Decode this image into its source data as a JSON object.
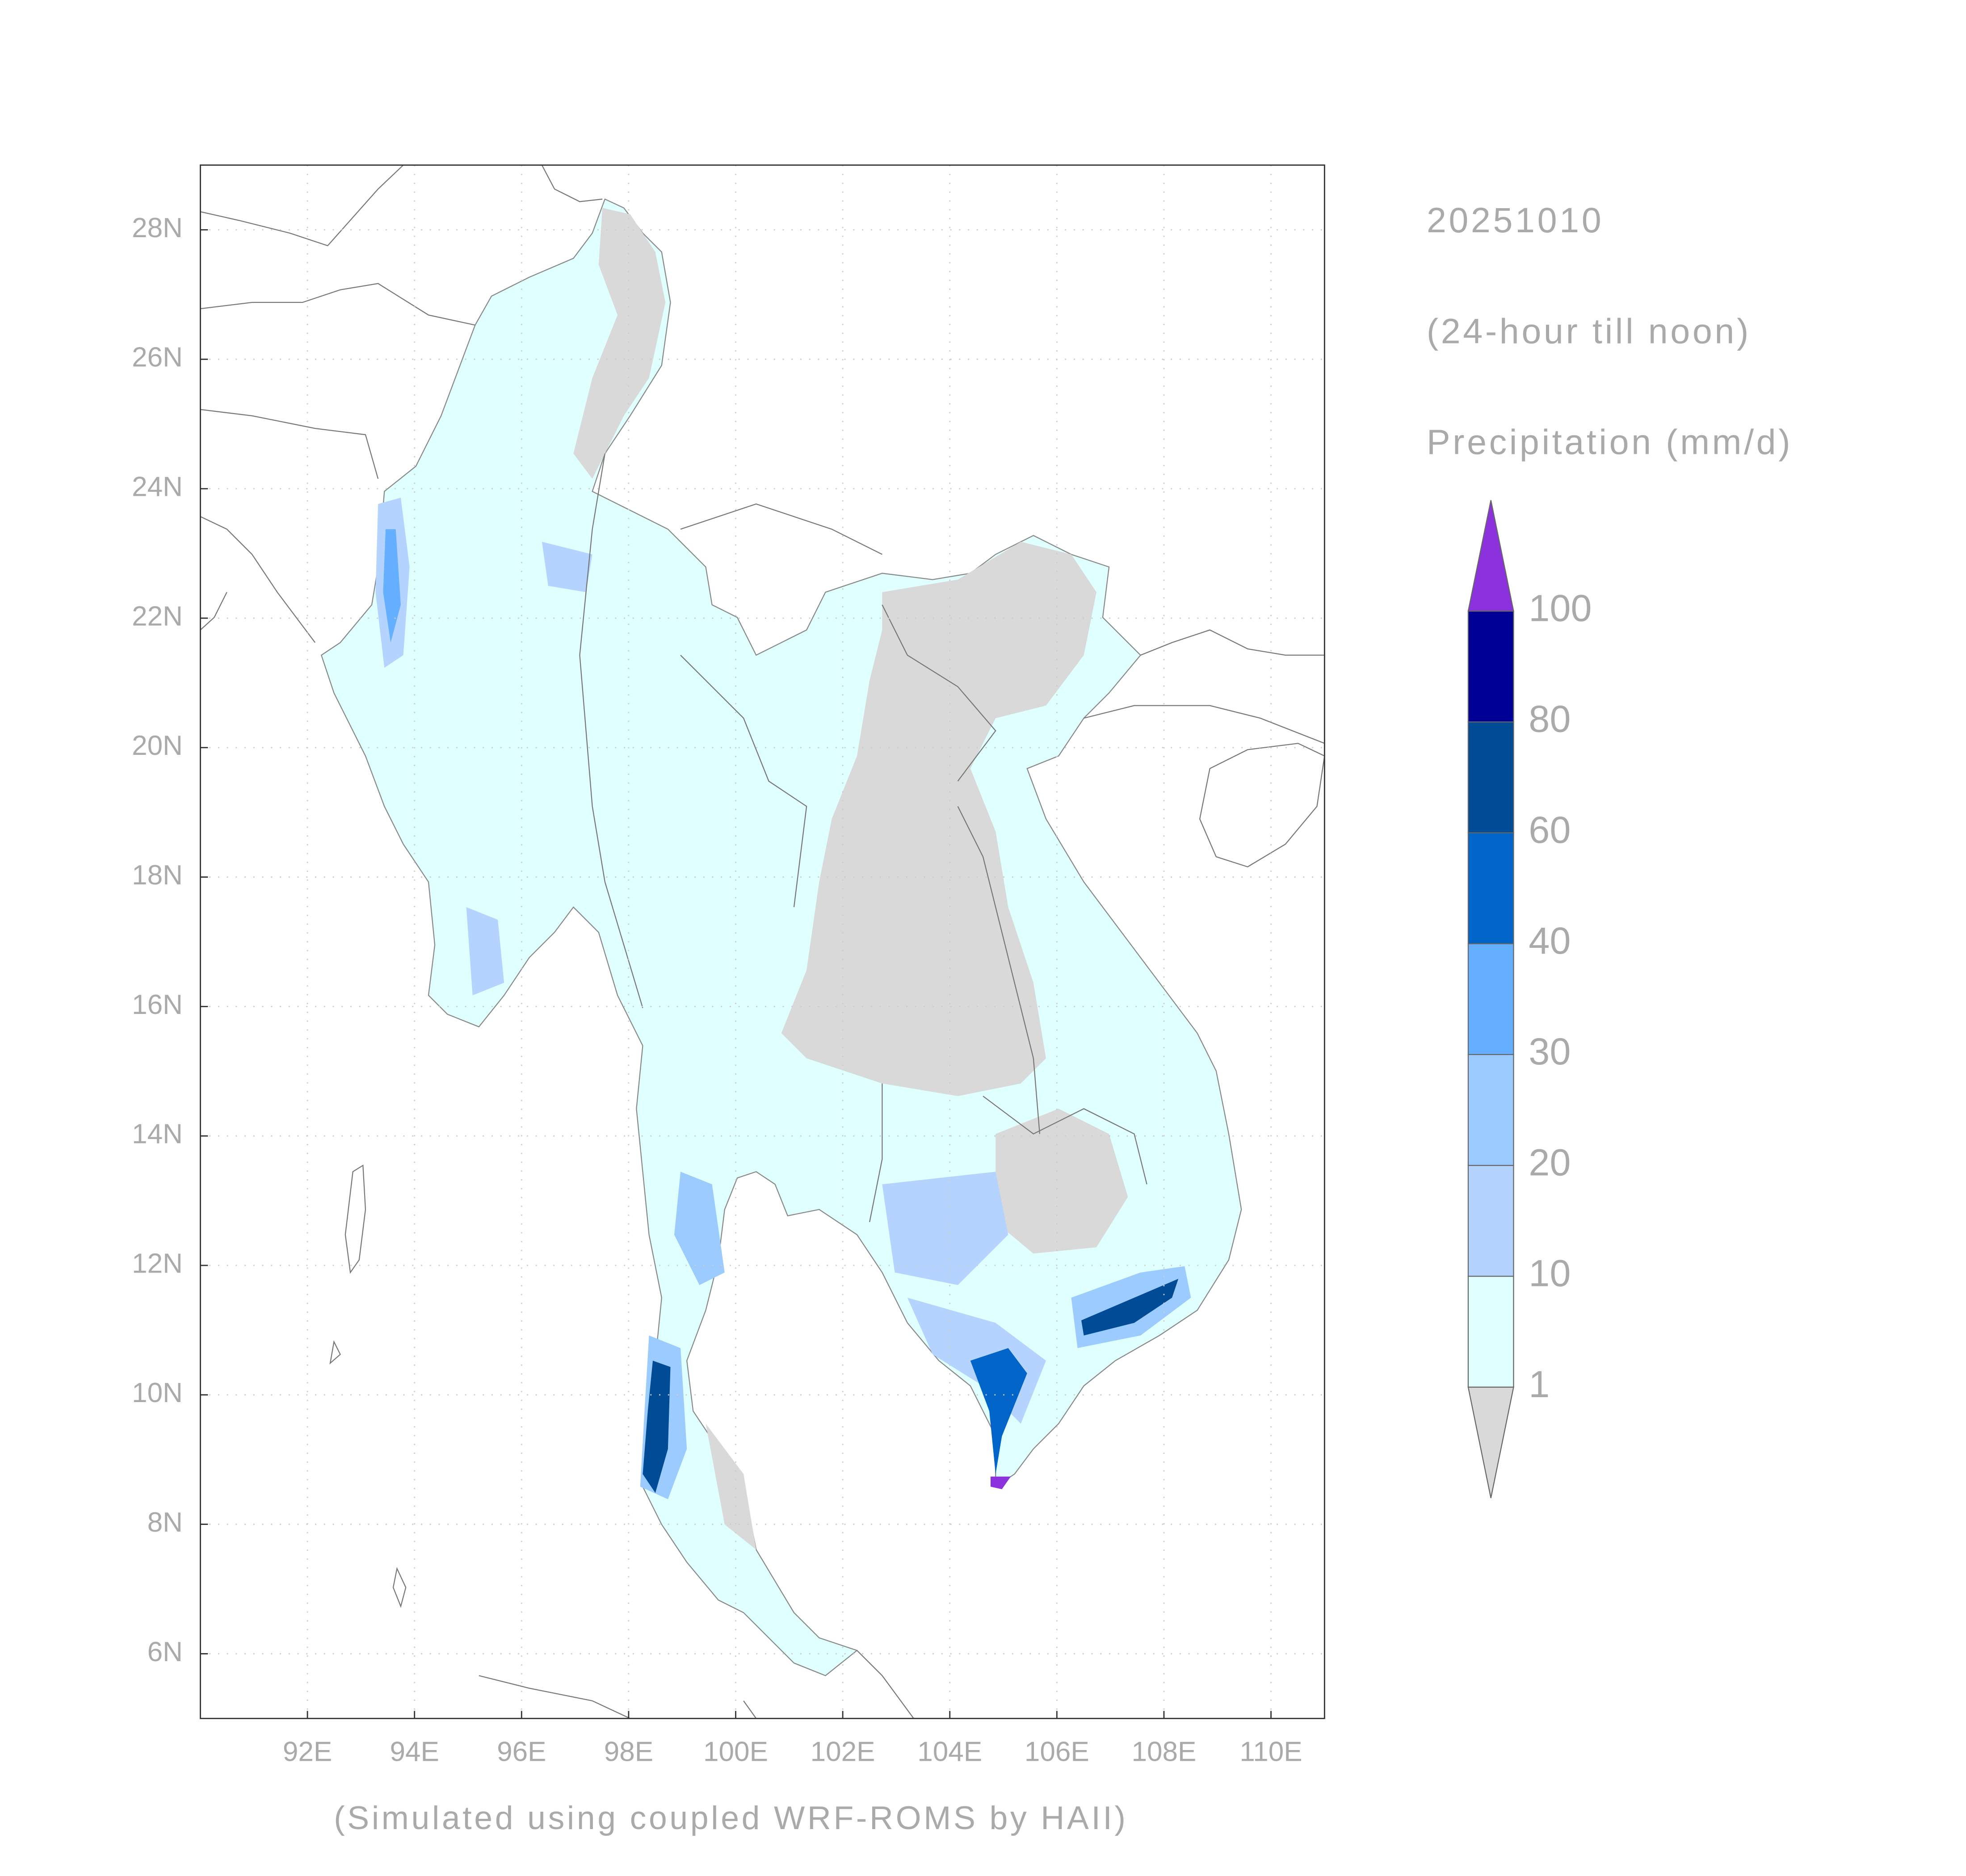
{
  "map": {
    "date": "20251010",
    "period": "(24-hour till noon)",
    "variable": "Precipitation (mm/d)",
    "credit": "(Simulated using coupled WRF-ROMS by HAII)",
    "lon_range": [
      90,
      111
    ],
    "lat_range": [
      5,
      29
    ],
    "lon_ticks": [
      {
        "value": 92,
        "label": "92E"
      },
      {
        "value": 94,
        "label": "94E"
      },
      {
        "value": 96,
        "label": "96E"
      },
      {
        "value": 98,
        "label": "98E"
      },
      {
        "value": 100,
        "label": "100E"
      },
      {
        "value": 102,
        "label": "102E"
      },
      {
        "value": 104,
        "label": "104E"
      },
      {
        "value": 106,
        "label": "106E"
      },
      {
        "value": 108,
        "label": "108E"
      },
      {
        "value": 110,
        "label": "110E"
      }
    ],
    "lat_ticks": [
      {
        "value": 6,
        "label": "6N"
      },
      {
        "value": 8,
        "label": "8N"
      },
      {
        "value": 10,
        "label": "10N"
      },
      {
        "value": 12,
        "label": "12N"
      },
      {
        "value": 14,
        "label": "14N"
      },
      {
        "value": 16,
        "label": "16N"
      },
      {
        "value": 18,
        "label": "18N"
      },
      {
        "value": 20,
        "label": "20N"
      },
      {
        "value": 22,
        "label": "22N"
      },
      {
        "value": 24,
        "label": "24N"
      },
      {
        "value": 26,
        "label": "26N"
      },
      {
        "value": 28,
        "label": "28N"
      }
    ],
    "colorbar": {
      "levels": [
        1,
        10,
        20,
        30,
        40,
        60,
        80,
        100
      ],
      "colors": [
        "#d9d9d9",
        "#e0ffff",
        "#b4d3ff",
        "#9bcbff",
        "#64afff",
        "#0064c8",
        "#004b96",
        "#000096",
        "#8c32dc"
      ]
    }
  }
}
